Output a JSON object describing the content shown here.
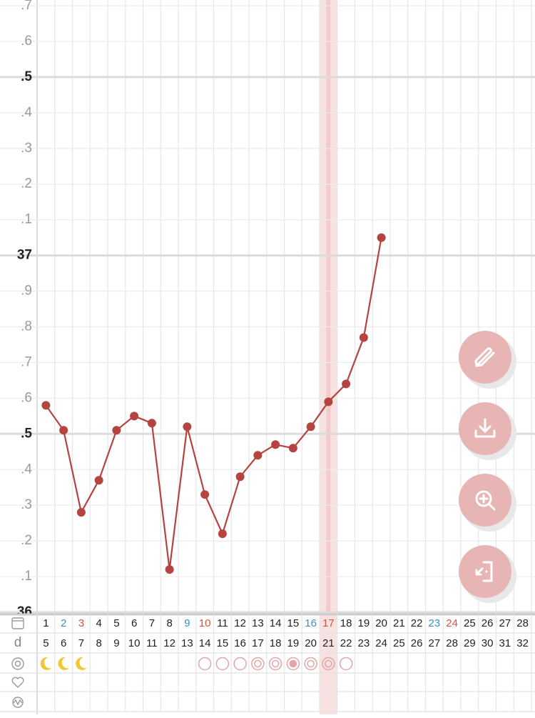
{
  "chart_data": {
    "type": "line",
    "categories": [
      1,
      2,
      3,
      4,
      5,
      6,
      7,
      8,
      9,
      10,
      11,
      12,
      13,
      14,
      15,
      16,
      17,
      18,
      19,
      20,
      21,
      22,
      23,
      24,
      25,
      26,
      27,
      28
    ],
    "category_colors": [
      "#222",
      "#3a8fd0",
      "#d9533f",
      "#222",
      "#222",
      "#222",
      "#222",
      "#222",
      "#3a8fd0",
      "#d9533f",
      "#222",
      "#222",
      "#222",
      "#222",
      "#222",
      "#3a8fd0",
      "#d9533f",
      "#222",
      "#222",
      "#222",
      "#222",
      "#222",
      "#3a8fd0",
      "#d9533f",
      "#222",
      "#222",
      "#222",
      "#222"
    ],
    "values": [
      36.58,
      36.51,
      36.28,
      36.37,
      36.51,
      36.55,
      36.53,
      36.12,
      36.52,
      36.33,
      36.22,
      36.38,
      36.44,
      36.47,
      36.46,
      36.52,
      36.59,
      36.64,
      36.77,
      37.05,
      null,
      null,
      null,
      null,
      null,
      null,
      null,
      null
    ],
    "color": "#b5433f",
    "highlight_category": 17,
    "ylim": [
      36,
      37.7
    ],
    "yticks": [
      {
        "value": 37.7,
        "label": ".7"
      },
      {
        "value": 37.6,
        "label": ".6"
      },
      {
        "value": 37.5,
        "label": ".5"
      },
      {
        "value": 37.4,
        "label": ".4"
      },
      {
        "value": 37.3,
        "label": ".3"
      },
      {
        "value": 37.2,
        "label": ".2"
      },
      {
        "value": 37.1,
        "label": ".1"
      },
      37,
      {
        "value": 36.9,
        "label": ".9"
      },
      {
        "value": 36.8,
        "label": ".8"
      },
      {
        "value": 36.7,
        "label": ".7"
      },
      {
        "value": 36.6,
        "label": ".6"
      },
      {
        "value": 36.5,
        "label": ".5"
      },
      {
        "value": 36.4,
        "label": ".4"
      },
      {
        "value": 36.3,
        "label": ".3"
      },
      {
        "value": 36.2,
        "label": ".2"
      },
      {
        "value": 36.1,
        "label": ".1"
      },
      36
    ],
    "grid": true,
    "row_label": "d",
    "row_values": [
      5,
      6,
      7,
      8,
      9,
      10,
      11,
      12,
      13,
      14,
      15,
      16,
      17,
      18,
      19,
      20,
      21,
      22,
      23,
      24,
      25,
      26,
      27,
      28,
      29,
      30,
      31,
      32
    ]
  }
}
